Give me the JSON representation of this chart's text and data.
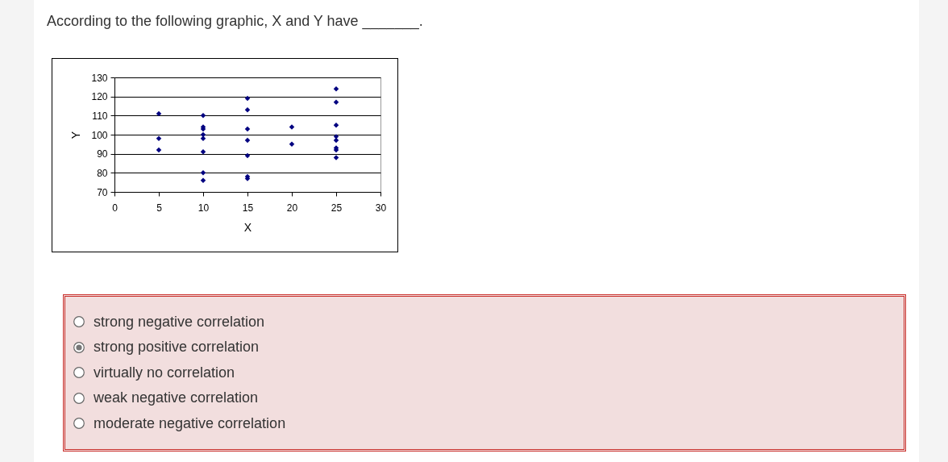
{
  "chart_data": {
    "type": "scatter",
    "title": "According to the following graphic, X and Y have _______.",
    "xlabel": "X",
    "ylabel": "Y",
    "x": [
      5,
      5,
      5,
      10,
      10,
      10,
      10,
      10,
      10,
      10,
      10,
      15,
      15,
      15,
      15,
      15,
      15,
      15,
      20,
      20,
      25,
      25,
      25,
      25,
      25,
      25,
      25,
      25
    ],
    "values": [
      111,
      98,
      92,
      110,
      104,
      103,
      100,
      98,
      91,
      80,
      76,
      119,
      113,
      103,
      97,
      89,
      78,
      77,
      104,
      95,
      124,
      117,
      105,
      99,
      97,
      93,
      92,
      88
    ],
    "color": "#000080",
    "marker": "diamond",
    "xlim": [
      0,
      30
    ],
    "xticks": [
      0,
      5,
      10,
      15,
      20,
      25,
      30
    ],
    "ylim": [
      70,
      130
    ],
    "yticks": [
      70,
      80,
      90,
      100,
      110,
      120,
      130
    ],
    "grid": "y",
    "annotations": [
      "strong negative correlation",
      "strong positive correlation",
      "virtually no correlation",
      "weak negative correlation",
      "moderate negative correlation"
    ]
  }
}
